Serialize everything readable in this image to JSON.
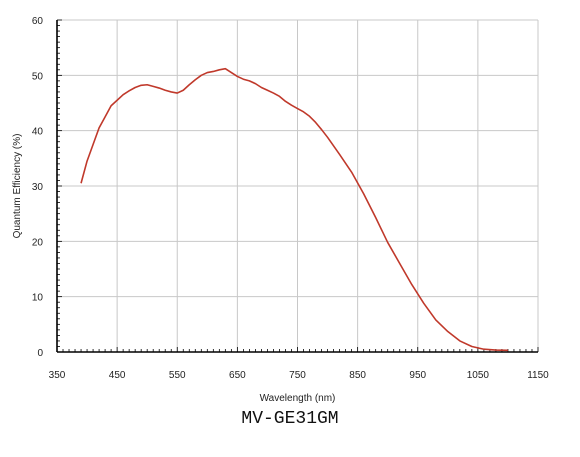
{
  "chart_data": {
    "type": "line",
    "title": "",
    "xlabel": "Wavelength (nm)",
    "ylabel": "Quantum Efficiency (%)",
    "xlim": [
      350,
      1150
    ],
    "ylim": [
      0,
      60
    ],
    "xticks": [
      350,
      450,
      550,
      650,
      750,
      850,
      950,
      1050,
      1150
    ],
    "yticks": [
      0,
      10,
      20,
      30,
      40,
      50,
      60
    ],
    "grid": true,
    "legend": "none",
    "series": [
      {
        "color": "#c0392b",
        "x": [
          390,
          400,
          410,
          420,
          430,
          440,
          450,
          460,
          470,
          480,
          490,
          500,
          510,
          520,
          530,
          540,
          550,
          560,
          570,
          580,
          590,
          600,
          610,
          620,
          630,
          640,
          650,
          660,
          670,
          680,
          690,
          700,
          710,
          720,
          730,
          740,
          750,
          760,
          770,
          780,
          790,
          800,
          820,
          840,
          860,
          880,
          900,
          920,
          940,
          960,
          980,
          1000,
          1020,
          1040,
          1060,
          1080,
          1100
        ],
        "y": [
          30.5,
          34.5,
          37.5,
          40.5,
          42.5,
          44.5,
          45.5,
          46.5,
          47.2,
          47.8,
          48.2,
          48.3,
          48.0,
          47.7,
          47.3,
          47.0,
          46.8,
          47.3,
          48.3,
          49.2,
          50.0,
          50.5,
          50.7,
          51.0,
          51.2,
          50.5,
          49.8,
          49.3,
          49.0,
          48.5,
          47.8,
          47.3,
          46.8,
          46.2,
          45.3,
          44.6,
          44.0,
          43.4,
          42.6,
          41.5,
          40.2,
          38.8,
          35.7,
          32.5,
          28.6,
          24.3,
          19.8,
          16.0,
          12.2,
          8.8,
          5.8,
          3.7,
          2.0,
          1.0,
          0.5,
          0.35,
          0.3
        ]
      }
    ]
  },
  "caption": "MV-GE31GM"
}
